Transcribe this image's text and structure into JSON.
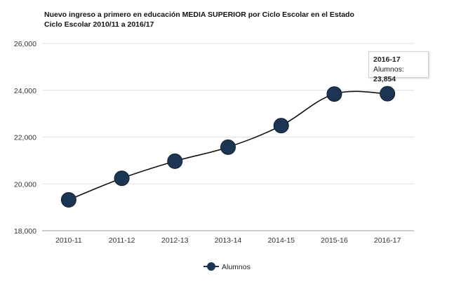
{
  "chart_data": {
    "type": "line",
    "title": "Nuevo ingreso a primero en educación MEDIA SUPERIOR por Ciclo Escolar en el Estado",
    "subtitle": "Ciclo Escolar 2010/11 a 2016/17",
    "categories": [
      "2010-11",
      "2011-12",
      "2012-13",
      "2013-14",
      "2014-15",
      "2015-16",
      "2016-17"
    ],
    "series": [
      {
        "name": "Alumnos",
        "values": [
          19320,
          20240,
          20970,
          21570,
          22490,
          23840,
          23854
        ]
      }
    ],
    "ylim": [
      18000,
      26000
    ],
    "yticks": [
      "18,000",
      "20,000",
      "22,000",
      "24,000",
      "26,000"
    ],
    "ytick_values": [
      18000,
      20000,
      22000,
      24000,
      26000
    ],
    "grid": true,
    "legend": "bottom",
    "series_color": "#1c3552",
    "tooltip": {
      "category": "2016-17",
      "label": "Alumnos:",
      "value": "23,854"
    }
  }
}
